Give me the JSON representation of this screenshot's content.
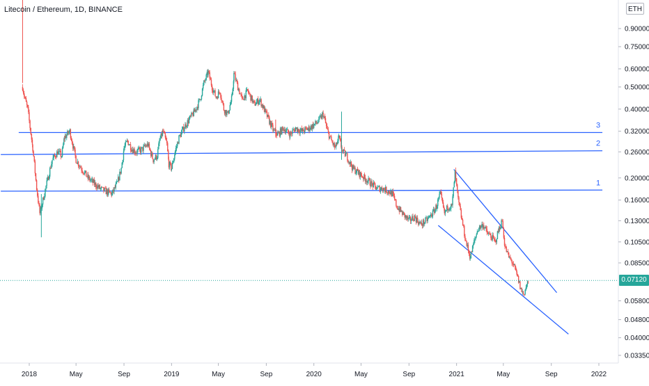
{
  "header": {
    "symbol_title": "Litecoin / Ethereum, 1D, BINANCE",
    "currency_badge": "ETH",
    "current_price": "0.07120"
  },
  "colors": {
    "background": "#ffffff",
    "up_candle": "#26a69a",
    "down_candle": "#ef5350",
    "trendline": "#2962ff",
    "axis_text": "#131722",
    "price_line": "#26a69a"
  },
  "chart_data": {
    "type": "candlestick",
    "scale": "log",
    "x_ticks": [
      "2018",
      "May",
      "Sep",
      "2019",
      "May",
      "Sep",
      "2020",
      "May",
      "Sep",
      "2021",
      "May",
      "Sep",
      "2022"
    ],
    "y_ticks": [
      "0.90000",
      "0.75000",
      "0.60000",
      "0.50000",
      "0.40000",
      "0.32000",
      "0.26000",
      "0.20000",
      "0.16000",
      "0.13000",
      "0.10500",
      "0.08500",
      "0.07120",
      "0.05800",
      "0.04800",
      "0.04000",
      "0.03350"
    ],
    "y_range": [
      0.031,
      1.2
    ],
    "x_range": [
      "2017-10-18",
      "2022-02-20"
    ],
    "last_price": 0.0712,
    "horizontal_levels": [
      {
        "label": "1",
        "start_date": "2017-10-20",
        "end_date": "2022-01-10",
        "start_value": 0.175,
        "end_value": 0.177
      },
      {
        "label": "2",
        "start_date": "2017-10-20",
        "end_date": "2022-01-10",
        "start_value": 0.253,
        "end_value": 0.263
      },
      {
        "label": "3",
        "start_date": "2017-12-05",
        "end_date": "2022-01-10",
        "start_value": 0.316,
        "end_value": 0.316
      }
    ],
    "wedge_lines": [
      {
        "start_date": "2020-11-15",
        "end_date": "2021-10-15",
        "start_value": 0.124,
        "end_value": 0.0415
      },
      {
        "start_date": "2020-12-25",
        "end_date": "2021-09-15",
        "start_value": 0.218,
        "end_value": 0.063
      }
    ],
    "price_path": [
      [
        "2017-12-15",
        0.5
      ],
      [
        "2017-12-20",
        0.45
      ],
      [
        "2017-12-28",
        0.4
      ],
      [
        "2018-01-10",
        0.27
      ],
      [
        "2018-01-20",
        0.18
      ],
      [
        "2018-01-28",
        0.14
      ],
      [
        "2018-02-05",
        0.16
      ],
      [
        "2018-02-15",
        0.19
      ],
      [
        "2018-03-01",
        0.24
      ],
      [
        "2018-03-15",
        0.26
      ],
      [
        "2018-03-25",
        0.25
      ],
      [
        "2018-04-01",
        0.3
      ],
      [
        "2018-04-15",
        0.32
      ],
      [
        "2018-05-01",
        0.24
      ],
      [
        "2018-05-15",
        0.22
      ],
      [
        "2018-06-01",
        0.2
      ],
      [
        "2018-06-15",
        0.19
      ],
      [
        "2018-07-01",
        0.18
      ],
      [
        "2018-07-15",
        0.175
      ],
      [
        "2018-08-01",
        0.17
      ],
      [
        "2018-08-15",
        0.19
      ],
      [
        "2018-08-25",
        0.22
      ],
      [
        "2018-09-01",
        0.27
      ],
      [
        "2018-09-10",
        0.29
      ],
      [
        "2018-09-20",
        0.27
      ],
      [
        "2018-10-01",
        0.26
      ],
      [
        "2018-10-15",
        0.265
      ],
      [
        "2018-11-01",
        0.28
      ],
      [
        "2018-11-15",
        0.24
      ],
      [
        "2018-11-25",
        0.25
      ],
      [
        "2018-12-01",
        0.29
      ],
      [
        "2018-12-10",
        0.32
      ],
      [
        "2018-12-20",
        0.28
      ],
      [
        "2018-12-25",
        0.23
      ],
      [
        "2019-01-01",
        0.22
      ],
      [
        "2019-01-10",
        0.26
      ],
      [
        "2019-01-20",
        0.3
      ],
      [
        "2019-02-01",
        0.33
      ],
      [
        "2019-02-15",
        0.36
      ],
      [
        "2019-03-01",
        0.39
      ],
      [
        "2019-03-15",
        0.44
      ],
      [
        "2019-03-25",
        0.52
      ],
      [
        "2019-04-05",
        0.58
      ],
      [
        "2019-04-15",
        0.5
      ],
      [
        "2019-04-25",
        0.45
      ],
      [
        "2019-05-05",
        0.48
      ],
      [
        "2019-05-15",
        0.4
      ],
      [
        "2019-05-25",
        0.38
      ],
      [
        "2019-06-05",
        0.45
      ],
      [
        "2019-06-10",
        0.57
      ],
      [
        "2019-06-20",
        0.5
      ],
      [
        "2019-07-01",
        0.44
      ],
      [
        "2019-07-15",
        0.48
      ],
      [
        "2019-08-01",
        0.42
      ],
      [
        "2019-08-15",
        0.44
      ],
      [
        "2019-09-01",
        0.38
      ],
      [
        "2019-09-10",
        0.35
      ],
      [
        "2019-09-20",
        0.32
      ],
      [
        "2019-10-01",
        0.31
      ],
      [
        "2019-10-15",
        0.33
      ],
      [
        "2019-11-01",
        0.31
      ],
      [
        "2019-11-15",
        0.33
      ],
      [
        "2019-12-01",
        0.32
      ],
      [
        "2019-12-20",
        0.33
      ],
      [
        "2020-01-10",
        0.35
      ],
      [
        "2020-01-25",
        0.38
      ],
      [
        "2020-02-05",
        0.32
      ],
      [
        "2020-02-15",
        0.29
      ],
      [
        "2020-02-25",
        0.27
      ],
      [
        "2020-03-05",
        0.3
      ],
      [
        "2020-03-15",
        0.26
      ],
      [
        "2020-03-25",
        0.25
      ],
      [
        "2020-04-10",
        0.22
      ],
      [
        "2020-04-25",
        0.21
      ],
      [
        "2020-05-10",
        0.2
      ],
      [
        "2020-05-25",
        0.19
      ],
      [
        "2020-06-10",
        0.18
      ],
      [
        "2020-06-25",
        0.18
      ],
      [
        "2020-07-10",
        0.175
      ],
      [
        "2020-07-20",
        0.17
      ],
      [
        "2020-08-01",
        0.15
      ],
      [
        "2020-08-15",
        0.14
      ],
      [
        "2020-09-01",
        0.13
      ],
      [
        "2020-09-15",
        0.135
      ],
      [
        "2020-10-01",
        0.125
      ],
      [
        "2020-10-15",
        0.13
      ],
      [
        "2020-11-01",
        0.14
      ],
      [
        "2020-11-10",
        0.15
      ],
      [
        "2020-11-20",
        0.17
      ],
      [
        "2020-12-01",
        0.14
      ],
      [
        "2020-12-10",
        0.15
      ],
      [
        "2020-12-20",
        0.15
      ],
      [
        "2020-12-28",
        0.21
      ],
      [
        "2021-01-05",
        0.16
      ],
      [
        "2021-01-15",
        0.13
      ],
      [
        "2021-01-25",
        0.105
      ],
      [
        "2021-02-05",
        0.09
      ],
      [
        "2021-02-15",
        0.105
      ],
      [
        "2021-02-25",
        0.12
      ],
      [
        "2021-03-10",
        0.125
      ],
      [
        "2021-03-20",
        0.115
      ],
      [
        "2021-04-01",
        0.11
      ],
      [
        "2021-04-10",
        0.105
      ],
      [
        "2021-04-20",
        0.12
      ],
      [
        "2021-04-28",
        0.13
      ],
      [
        "2021-05-05",
        0.1
      ],
      [
        "2021-05-15",
        0.09
      ],
      [
        "2021-05-25",
        0.085
      ],
      [
        "2021-06-05",
        0.075
      ],
      [
        "2021-06-15",
        0.065
      ],
      [
        "2021-06-22",
        0.062
      ],
      [
        "2021-06-30",
        0.068
      ],
      [
        "2021-07-05",
        0.0712
      ]
    ]
  }
}
